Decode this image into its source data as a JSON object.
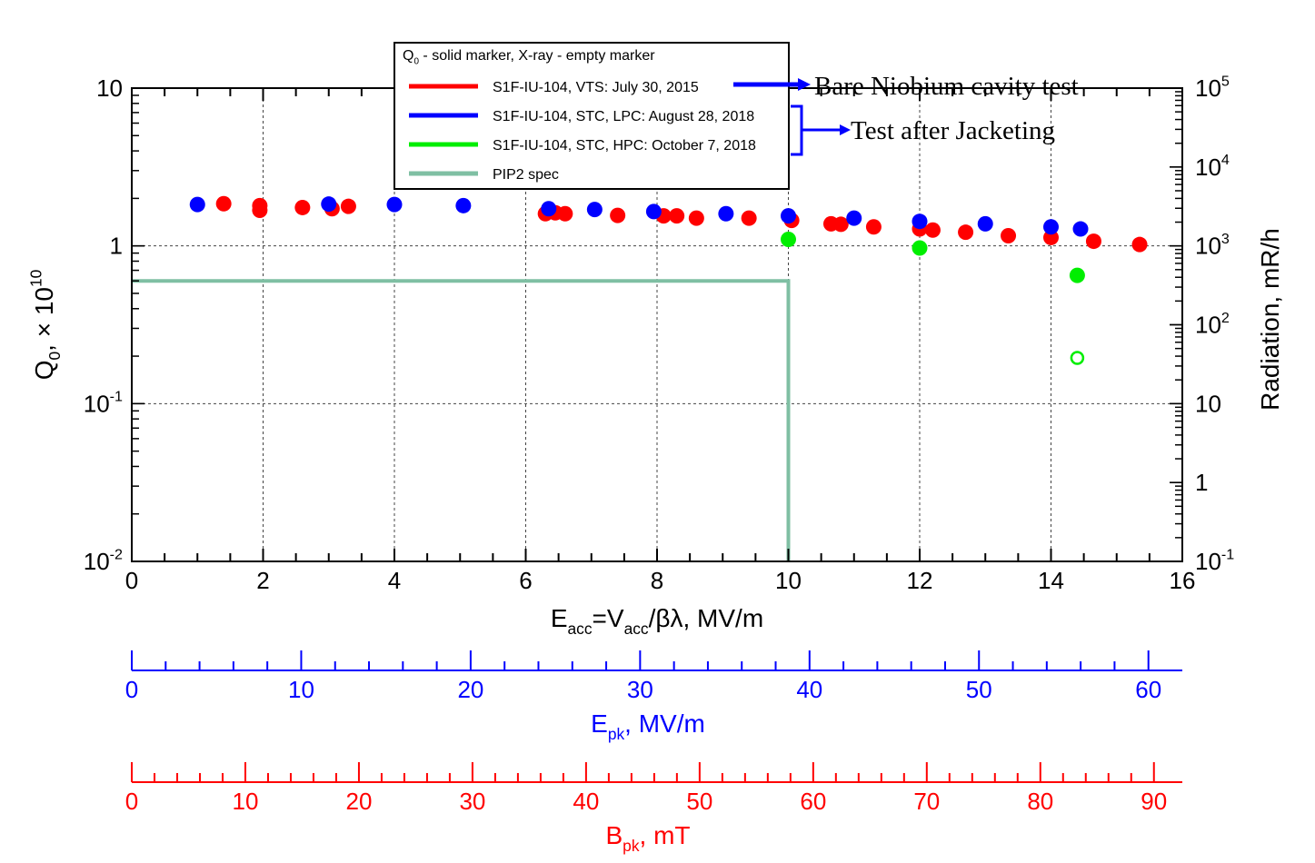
{
  "chart_data": {
    "type": "scatter",
    "title": "",
    "xlabel": {
      "main": "E",
      "sub": "acc",
      "rest": "=V",
      "sub2": "acc",
      "tail": "/βλ, MV/m"
    },
    "ylabel_left": {
      "main": "Q",
      "sub": "0",
      "mid": ", × 10",
      "sup": "10"
    },
    "ylabel_right": "Radiation, mR/h",
    "x_range": [
      0,
      16
    ],
    "x_ticks": [
      "0",
      "2",
      "4",
      "6",
      "8",
      "10",
      "12",
      "14",
      "16"
    ],
    "y_left_ticks": [
      {
        "value": 0.01,
        "base": "10",
        "exp": "-2"
      },
      {
        "value": 0.1,
        "base": "10",
        "exp": "-1"
      },
      {
        "value": 1,
        "base": "1",
        "exp": ""
      },
      {
        "value": 10,
        "base": "10",
        "exp": ""
      }
    ],
    "y_right_ticks": [
      {
        "value": 0.1,
        "base": "10",
        "exp": "-1"
      },
      {
        "value": 1,
        "base": "1",
        "exp": ""
      },
      {
        "value": 10,
        "base": "10",
        "exp": ""
      },
      {
        "value": 100,
        "base": "10",
        "exp": "2"
      },
      {
        "value": 1000,
        "base": "10",
        "exp": "3"
      },
      {
        "value": 10000,
        "base": "10",
        "exp": "4"
      },
      {
        "value": 100000,
        "base": "10",
        "exp": "5"
      }
    ],
    "y_left_scale": "log",
    "y_left_range": [
      0.01,
      10
    ],
    "y_right_scale": "log",
    "y_right_range": [
      0.1,
      100000
    ],
    "grid": true,
    "legend": {
      "header": {
        "main": "Q",
        "sub": "0",
        "rest": " - solid marker, X-ray - empty marker"
      },
      "placement": "top-center"
    },
    "series": [
      {
        "name": "S1F-IU-104, VTS: July 30, 2015",
        "color": "#ff0000",
        "marker": "solid",
        "points": [
          [
            1.4,
            1.85
          ],
          [
            1.95,
            1.8
          ],
          [
            1.95,
            1.68
          ],
          [
            2.6,
            1.75
          ],
          [
            3.05,
            1.72
          ],
          [
            3.3,
            1.78
          ],
          [
            6.3,
            1.6
          ],
          [
            6.45,
            1.62
          ],
          [
            6.6,
            1.6
          ],
          [
            7.4,
            1.56
          ],
          [
            8.1,
            1.55
          ],
          [
            8.3,
            1.55
          ],
          [
            8.6,
            1.5
          ],
          [
            9.4,
            1.5
          ],
          [
            10.05,
            1.45
          ],
          [
            10.65,
            1.38
          ],
          [
            10.8,
            1.37
          ],
          [
            11.3,
            1.32
          ],
          [
            12.0,
            1.28
          ],
          [
            12.2,
            1.26
          ],
          [
            12.7,
            1.22
          ],
          [
            13.35,
            1.16
          ],
          [
            14.0,
            1.13
          ],
          [
            14.65,
            1.07
          ],
          [
            15.35,
            1.02
          ]
        ]
      },
      {
        "name": "S1F-IU-104, STC, LPC: August 28, 2018",
        "color": "#0000ff",
        "marker": "solid",
        "points": [
          [
            1.0,
            1.83
          ],
          [
            3.0,
            1.84
          ],
          [
            4.0,
            1.83
          ],
          [
            5.05,
            1.8
          ],
          [
            6.35,
            1.72
          ],
          [
            7.05,
            1.7
          ],
          [
            7.95,
            1.65
          ],
          [
            9.05,
            1.6
          ],
          [
            10.0,
            1.55
          ],
          [
            11.0,
            1.5
          ],
          [
            12.0,
            1.43
          ],
          [
            13.0,
            1.38
          ],
          [
            14.0,
            1.32
          ],
          [
            14.45,
            1.28
          ]
        ]
      },
      {
        "name": "S1F-IU-104, STC, HPC: October 7, 2018",
        "color": "#00ee00",
        "marker": "solid",
        "points": [
          [
            10.0,
            1.1
          ],
          [
            12.0,
            0.97
          ],
          [
            14.4,
            0.65
          ]
        ]
      },
      {
        "name": "PIP2 spec",
        "color": "#7fbfa3",
        "marker": "line",
        "points": [
          [
            0,
            0.6
          ],
          [
            10,
            0.6
          ],
          [
            10,
            0.01
          ]
        ]
      }
    ],
    "xray_points": [
      {
        "series": "S1F-IU-104, STC, HPC: October 7, 2018",
        "color": "#00ee00",
        "x": 14.4,
        "radiation": 38
      }
    ],
    "annotations": {
      "bare": "Bare Niobium cavity test",
      "jacket": "Test after Jacketing"
    },
    "secondary_axes": [
      {
        "label": {
          "main": "E",
          "sub": "pk",
          "rest": ", MV/m"
        },
        "color": "#0000ff",
        "range": [
          0,
          62
        ],
        "ticks": [
          "0",
          "10",
          "20",
          "30",
          "40",
          "50",
          "60"
        ]
      },
      {
        "label": {
          "main": "B",
          "sub": "pk",
          "rest": ", mT"
        },
        "color": "#ff0000",
        "range": [
          0,
          92.5
        ],
        "ticks": [
          "0",
          "10",
          "20",
          "30",
          "40",
          "50",
          "60",
          "70",
          "80",
          "90"
        ]
      }
    ]
  }
}
